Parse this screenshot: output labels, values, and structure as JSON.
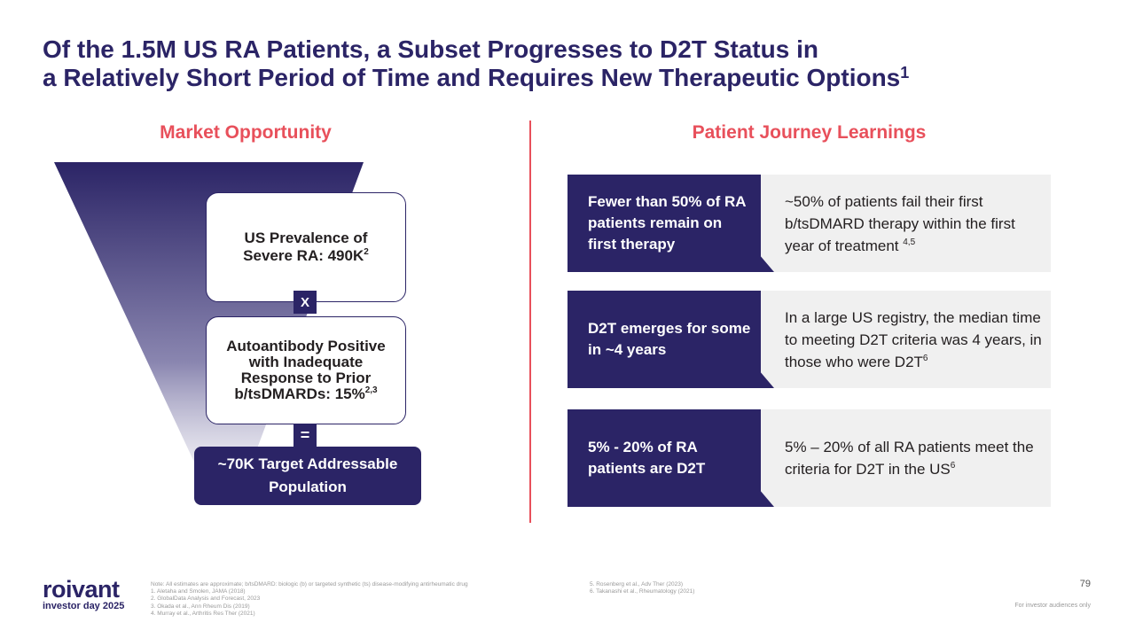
{
  "title": {
    "line1": "Of the 1.5M US RA Patients, a Subset Progresses to D2T Status in",
    "line2": "a Relatively Short Period of Time and Requires New Therapeutic Options",
    "superscript": "1"
  },
  "left": {
    "heading": "Market Opportunity",
    "box1": {
      "text": "US Prevalence of Severe RA: 490K",
      "sup": "2"
    },
    "operator1": "X",
    "box2": {
      "text": "Autoantibody Positive with Inadequate Response to Prior b/tsDMARDs: 15%",
      "sup": "2,3"
    },
    "operator2": "=",
    "target": "~70K Target Addressable Population"
  },
  "right": {
    "heading": "Patient Journey Learnings",
    "cards": [
      {
        "label": "Fewer than 50% of RA patients remain on first therapy",
        "text": "~50% of patients fail their first b/tsDMARD therapy within the first year of treatment",
        "sup": "4,5"
      },
      {
        "label": "D2T emerges for some in ~4 years",
        "text": "In a large US registry, the median time to meeting D2T criteria was 4 years, in those who were D2T",
        "sup": "6"
      },
      {
        "label": "5% - 20% of RA patients are D2T",
        "text": "5% – 20% of all RA patients meet the criteria for D2T in the US",
        "sup": "6"
      }
    ]
  },
  "footer": {
    "logo_word": "roivant",
    "logo_sub": "investor day 2025",
    "notes_left": [
      "Note: All estimates are approximate; b/tsDMARD: biologic (b) or targeted synthetic (ts) disease-modifying antirheumatic drug",
      "1. Aletaha and Smolen, JAMA (2018)",
      "2. GlobalData Analysis and Forecast, 2023",
      "3. Okada et al., Ann Rheum Dis (2019)",
      "4. Murray et al., Arthritis Res Ther (2021)"
    ],
    "notes_right": [
      "5. Rosenberg et al., Adv Ther (2023)",
      "6. Takanashi et al., Rheumatology (2021)"
    ],
    "page_number": "79",
    "disclaimer": "For investor audiences only"
  },
  "colors": {
    "navy": "#2b2466",
    "accent": "#e8505b",
    "card_bg": "#f0f0f0"
  }
}
